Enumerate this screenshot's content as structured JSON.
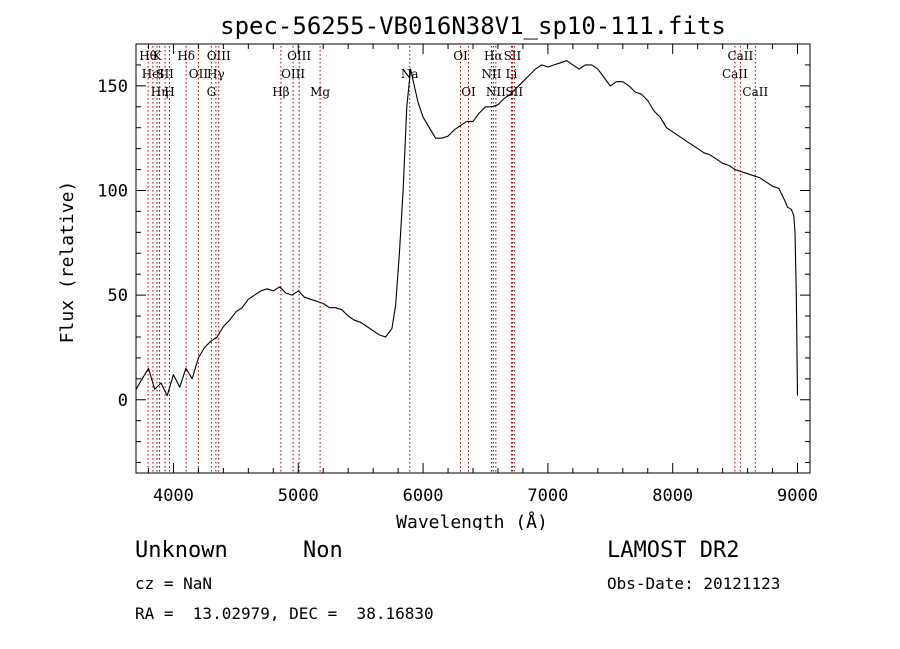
{
  "chart_data": {
    "type": "line",
    "title": "spec-56255-VB016N38V1_sp10-111.fits",
    "xlabel": "Wavelength (Å)",
    "ylabel": "Flux (relative)",
    "xlim": [
      3700,
      9100
    ],
    "ylim": [
      -35,
      170
    ],
    "x_ticks": [
      4000,
      5000,
      6000,
      7000,
      8000,
      9000
    ],
    "y_ticks": [
      0,
      50,
      100,
      150
    ],
    "y_tick_labels": [
      "0",
      "50",
      "100",
      "150"
    ],
    "grid": false,
    "line_color": "#000000",
    "marker_color": "#8b0000",
    "series": [
      {
        "x": [
          3700,
          3750,
          3800,
          3850,
          3900,
          3950,
          4000,
          4050,
          4100,
          4150,
          4200,
          4250,
          4300,
          4350,
          4400,
          4450,
          4500,
          4550,
          4600,
          4650,
          4700,
          4750,
          4800,
          4850,
          4900,
          4950,
          5000,
          5050,
          5100,
          5150,
          5200,
          5250,
          5300,
          5350,
          5400,
          5450,
          5500,
          5550,
          5600,
          5650,
          5700,
          5750,
          5780,
          5810,
          5840,
          5870,
          5900,
          5930,
          5960,
          6000,
          6050,
          6100,
          6150,
          6200,
          6250,
          6300,
          6350,
          6400,
          6450,
          6500,
          6550,
          6600,
          6650,
          6700,
          6750,
          6800,
          6850,
          6900,
          6950,
          7000,
          7050,
          7100,
          7150,
          7200,
          7250,
          7300,
          7350,
          7400,
          7450,
          7500,
          7550,
          7600,
          7650,
          7700,
          7750,
          7800,
          7850,
          7900,
          7950,
          8000,
          8050,
          8100,
          8150,
          8200,
          8250,
          8300,
          8350,
          8400,
          8450,
          8500,
          8550,
          8600,
          8650,
          8700,
          8750,
          8800,
          8850,
          8900,
          8920,
          8950,
          8970,
          8980,
          8990,
          9000
        ],
        "y": [
          5,
          10,
          15,
          5,
          8,
          2,
          12,
          6,
          15,
          10,
          20,
          25,
          28,
          30,
          35,
          38,
          42,
          44,
          48,
          50,
          52,
          53,
          52,
          54,
          51,
          50,
          52,
          49,
          48,
          47,
          46,
          44,
          44,
          43,
          40,
          38,
          37,
          35,
          33,
          31,
          30,
          34,
          45,
          70,
          100,
          140,
          158,
          150,
          142,
          135,
          130,
          125,
          125,
          126,
          129,
          131,
          133,
          133,
          137,
          140,
          140,
          141,
          144,
          146,
          149,
          152,
          155,
          158,
          160,
          159,
          160,
          161,
          162,
          160,
          158,
          160,
          160,
          158,
          154,
          150,
          152,
          152,
          150,
          147,
          146,
          143,
          138,
          135,
          130,
          128,
          126,
          124,
          122,
          120,
          118,
          117,
          115,
          113,
          112,
          110,
          109,
          108,
          107,
          106,
          104,
          102,
          101,
          95,
          92,
          91,
          88,
          80,
          50,
          2
        ]
      }
    ],
    "line_markers": [
      {
        "x": 3797,
        "label": "Hθ",
        "row": 0
      },
      {
        "x": 3835,
        "label": "HeI",
        "row": 1
      },
      {
        "x": 3869,
        "label": "K",
        "row": 0
      },
      {
        "x": 3889,
        "label": "Hη",
        "row": 2
      },
      {
        "x": 3933,
        "label": "SII",
        "row": 1
      },
      {
        "x": 3968,
        "label": "H",
        "row": 2
      },
      {
        "x": 4102,
        "label": "Hδ",
        "row": 0
      },
      {
        "x": 4200,
        "label": "OII",
        "row": 1
      },
      {
        "x": 4304,
        "label": "G",
        "row": 2
      },
      {
        "x": 4340,
        "label": "Hγ",
        "row": 1
      },
      {
        "x": 4363,
        "label": "OIII",
        "row": 0
      },
      {
        "x": 4861,
        "label": "Hβ",
        "row": 2
      },
      {
        "x": 4959,
        "label": "OIII",
        "row": 1
      },
      {
        "x": 5007,
        "label": "OIII",
        "row": 0
      },
      {
        "x": 5175,
        "label": "Mg",
        "row": 2
      },
      {
        "x": 5893,
        "label": "Na",
        "row": 1
      },
      {
        "x": 6300,
        "label": "OI",
        "row": 0
      },
      {
        "x": 6364,
        "label": "OI",
        "row": 2
      },
      {
        "x": 6548,
        "label": "NII",
        "row": 1
      },
      {
        "x": 6563,
        "label": "Hα",
        "row": 0
      },
      {
        "x": 6583,
        "label": "NII",
        "row": 2
      },
      {
        "x": 6708,
        "label": "Li",
        "row": 1
      },
      {
        "x": 6716,
        "label": "SII",
        "row": 0
      },
      {
        "x": 6731,
        "label": "SII",
        "row": 2
      },
      {
        "x": 8498,
        "label": "CaII",
        "row": 1
      },
      {
        "x": 8542,
        "label": "CaII",
        "row": 0
      },
      {
        "x": 8662,
        "label": "CaII",
        "row": 2
      }
    ]
  },
  "footer": {
    "object_class": "Unknown",
    "subclass": "Non",
    "survey": "LAMOST DR2",
    "redshift": "cz = NaN",
    "obs_date": "Obs-Date: 20121123",
    "coords": "RA =  13.02979, DEC =  38.16830"
  }
}
